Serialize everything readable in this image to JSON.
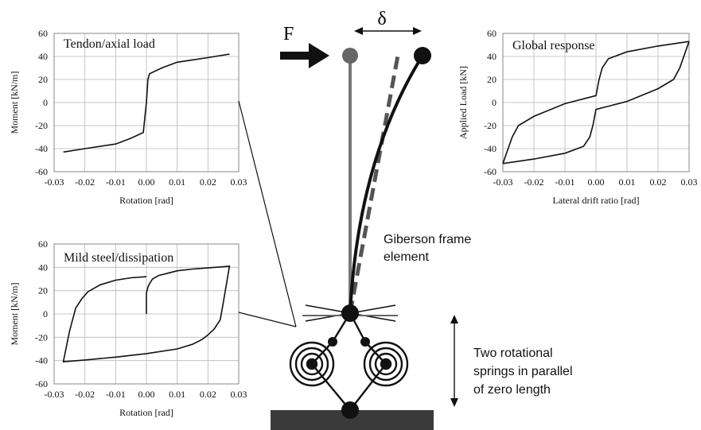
{
  "diagram": {
    "force_label": "F",
    "displacement_label": "δ",
    "element_label": [
      "Giberson frame",
      "element"
    ],
    "springs_label": [
      "Two rotational",
      "springs in parallel",
      "of zero length"
    ]
  },
  "chart_data": [
    {
      "id": "tendon",
      "type": "line",
      "title": "Tendon/axial load",
      "xlabel": "Rotation [rad]",
      "ylabel": "Moment [kN/m]",
      "xlim": [
        -0.03,
        0.03
      ],
      "ylim": [
        -60,
        60
      ],
      "xticks": [
        "-0.03",
        "-0.02",
        "-0.01",
        "0.00",
        "0.01",
        "0.02",
        "0.03"
      ],
      "yticks": [
        "60",
        "40",
        "20",
        "0",
        "-20",
        "-40",
        "-60"
      ],
      "series": [
        {
          "x": [
            -0.027,
            -0.02,
            -0.01,
            -0.005,
            -0.001,
            0.0,
            0.0005,
            0.001,
            0.005,
            0.01,
            0.02,
            0.027
          ],
          "y": [
            -43,
            -40,
            -36,
            -31,
            -26,
            0,
            20,
            25,
            30,
            35,
            39,
            42
          ]
        }
      ]
    },
    {
      "id": "mild",
      "type": "line",
      "title": "Mild steel/dissipation",
      "xlabel": "Rotation [rad]",
      "ylabel": "Moment [kN/m]",
      "xlim": [
        -0.03,
        0.03
      ],
      "ylim": [
        -60,
        60
      ],
      "xticks": [
        "-0.03",
        "-0.02",
        "-0.01",
        "0.00",
        "0.01",
        "0.02",
        "0.03"
      ],
      "yticks": [
        "60",
        "40",
        "20",
        "0",
        "-20",
        "-40",
        "-60"
      ],
      "series": [
        {
          "x": [
            0.0,
            0.0,
            0.0005,
            0.001,
            0.002,
            0.004,
            0.007,
            0.01,
            0.015,
            0.02,
            0.025,
            0.027,
            0.025,
            0.024,
            0.022,
            0.02,
            0.018,
            0.015,
            0.01,
            0.0,
            -0.01,
            -0.02,
            -0.027,
            -0.025,
            -0.023,
            -0.021,
            -0.019,
            -0.015,
            -0.01,
            -0.005,
            0.0
          ],
          "y": [
            0,
            18,
            23,
            26,
            30,
            33,
            35,
            37,
            38.5,
            39.5,
            40.5,
            41,
            10,
            -5,
            -13,
            -18,
            -22,
            -26,
            -30,
            -34,
            -37,
            -39.5,
            -41,
            -15,
            5,
            13,
            19,
            25,
            29,
            31,
            32
          ]
        }
      ]
    },
    {
      "id": "global",
      "type": "line",
      "title": "Global response",
      "xlabel": "Lateral drift ratio [rad]",
      "ylabel": "Applied Load [kN]",
      "xlim": [
        -0.03,
        0.03
      ],
      "ylim": [
        -60,
        60
      ],
      "xticks": [
        "-0.03",
        "-0.02",
        "-0.01",
        "0.00",
        "0.01",
        "0.02",
        "0.03"
      ],
      "yticks": [
        "60",
        "40",
        "20",
        "0",
        "-20",
        "-40",
        "-60"
      ],
      "series": [
        {
          "x": [
            -0.03,
            -0.027,
            -0.025,
            -0.02,
            -0.01,
            0.0,
            0.001,
            0.002,
            0.004,
            0.01,
            0.02,
            0.03
          ],
          "y": [
            -53,
            -30,
            -20,
            -12,
            -1,
            6,
            20,
            30,
            38,
            44,
            49,
            53
          ]
        },
        {
          "x": [
            0.03,
            0.027,
            0.025,
            0.02,
            0.01,
            0.0,
            -0.001,
            -0.002,
            -0.004,
            -0.01,
            -0.02,
            -0.03
          ],
          "y": [
            53,
            30,
            20,
            12,
            1,
            -6,
            -20,
            -30,
            -38,
            -44,
            -49,
            -53
          ]
        }
      ]
    }
  ]
}
